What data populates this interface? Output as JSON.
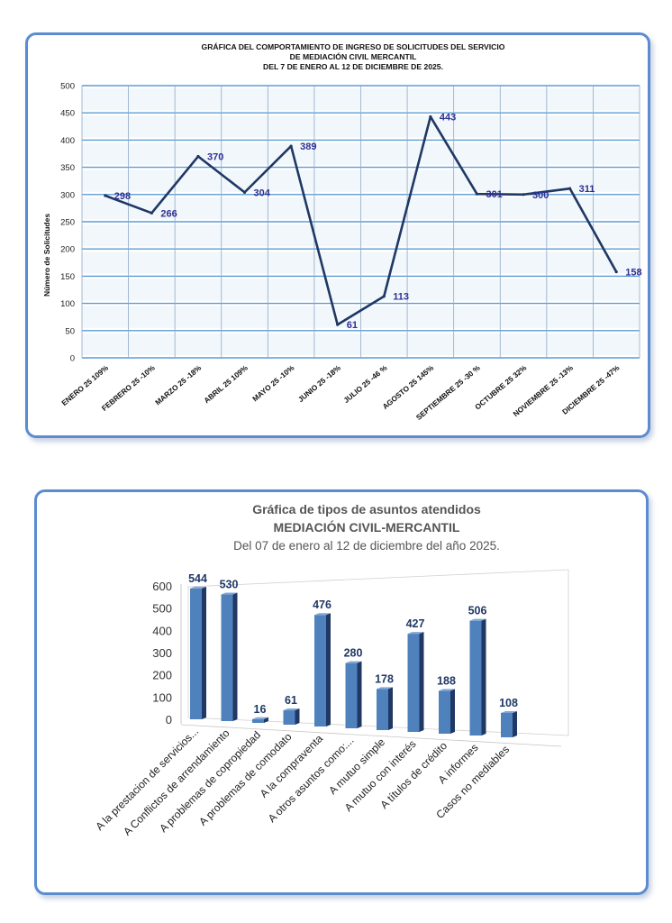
{
  "chart_data": [
    {
      "type": "line",
      "title": [
        "GRÁFICA DEL COMPORTAMIENTO DE  INGRESO DE SOLICITUDES DEL SERVICIO",
        "DE MEDIACIÓN CIVIL  MERCANTIL",
        "DEL 7 DE ENERO  AL  12 DE DICIEMBRE  DE 2025."
      ],
      "ylabel": "Número de Solicitudes",
      "xlabel": "",
      "ylim": [
        0,
        500
      ],
      "yticks": [
        0,
        50,
        100,
        150,
        200,
        250,
        300,
        350,
        400,
        450,
        500
      ],
      "grid": true,
      "categories": [
        "ENERO 25  109%",
        "FEBRERO 25  -10%",
        "MARZO 25    -18%",
        "ABRIL 25  109%",
        "MAYO 25  -10%",
        "JUNIO 25    -18%",
        "JULIO 25   -46 %",
        "AGOSTO  25  145%",
        "SEPTIEMBRE  25  -30 %",
        "OCTUBRE  25  32%",
        "NOVIEMBRE  25  -13%",
        "DICIEMBRE  25    -47%"
      ],
      "values": [
        298,
        266,
        370,
        304,
        389,
        61,
        113,
        443,
        301,
        300,
        311,
        158
      ],
      "colors": {
        "line": "#1f3864",
        "labels": "#2e3192",
        "grid": "#5b9bd5",
        "band": "#dbe7f4"
      }
    },
    {
      "type": "bar",
      "title": [
        "Gráfica de tipos de asuntos atendidos",
        "MEDIACIÓN CIVIL-MERCANTIL",
        "Del 07 de enero al 12 de diciembre del año 2025."
      ],
      "xlabel": "",
      "ylabel": "",
      "ylim": [
        0,
        600
      ],
      "yticks": [
        0,
        100,
        200,
        300,
        400,
        500,
        600
      ],
      "grid": false,
      "categories": [
        "A la prestacion de servicios...",
        "A Conflictos de arrendamiento",
        "A problemas de copropiedad",
        "A problemas de comodato",
        "A la compraventa",
        "A otros asuntos como:...",
        "A mutuo simple",
        "A mutuo con interés",
        "A títulos de crédito",
        "A informes",
        "Casos no mediables"
      ],
      "values": [
        544,
        530,
        16,
        61,
        476,
        280,
        178,
        427,
        188,
        506,
        108
      ],
      "colors": {
        "bar": "#4f81bd",
        "bar_dark": "#1f3864",
        "labels": "#1f3864"
      }
    }
  ]
}
